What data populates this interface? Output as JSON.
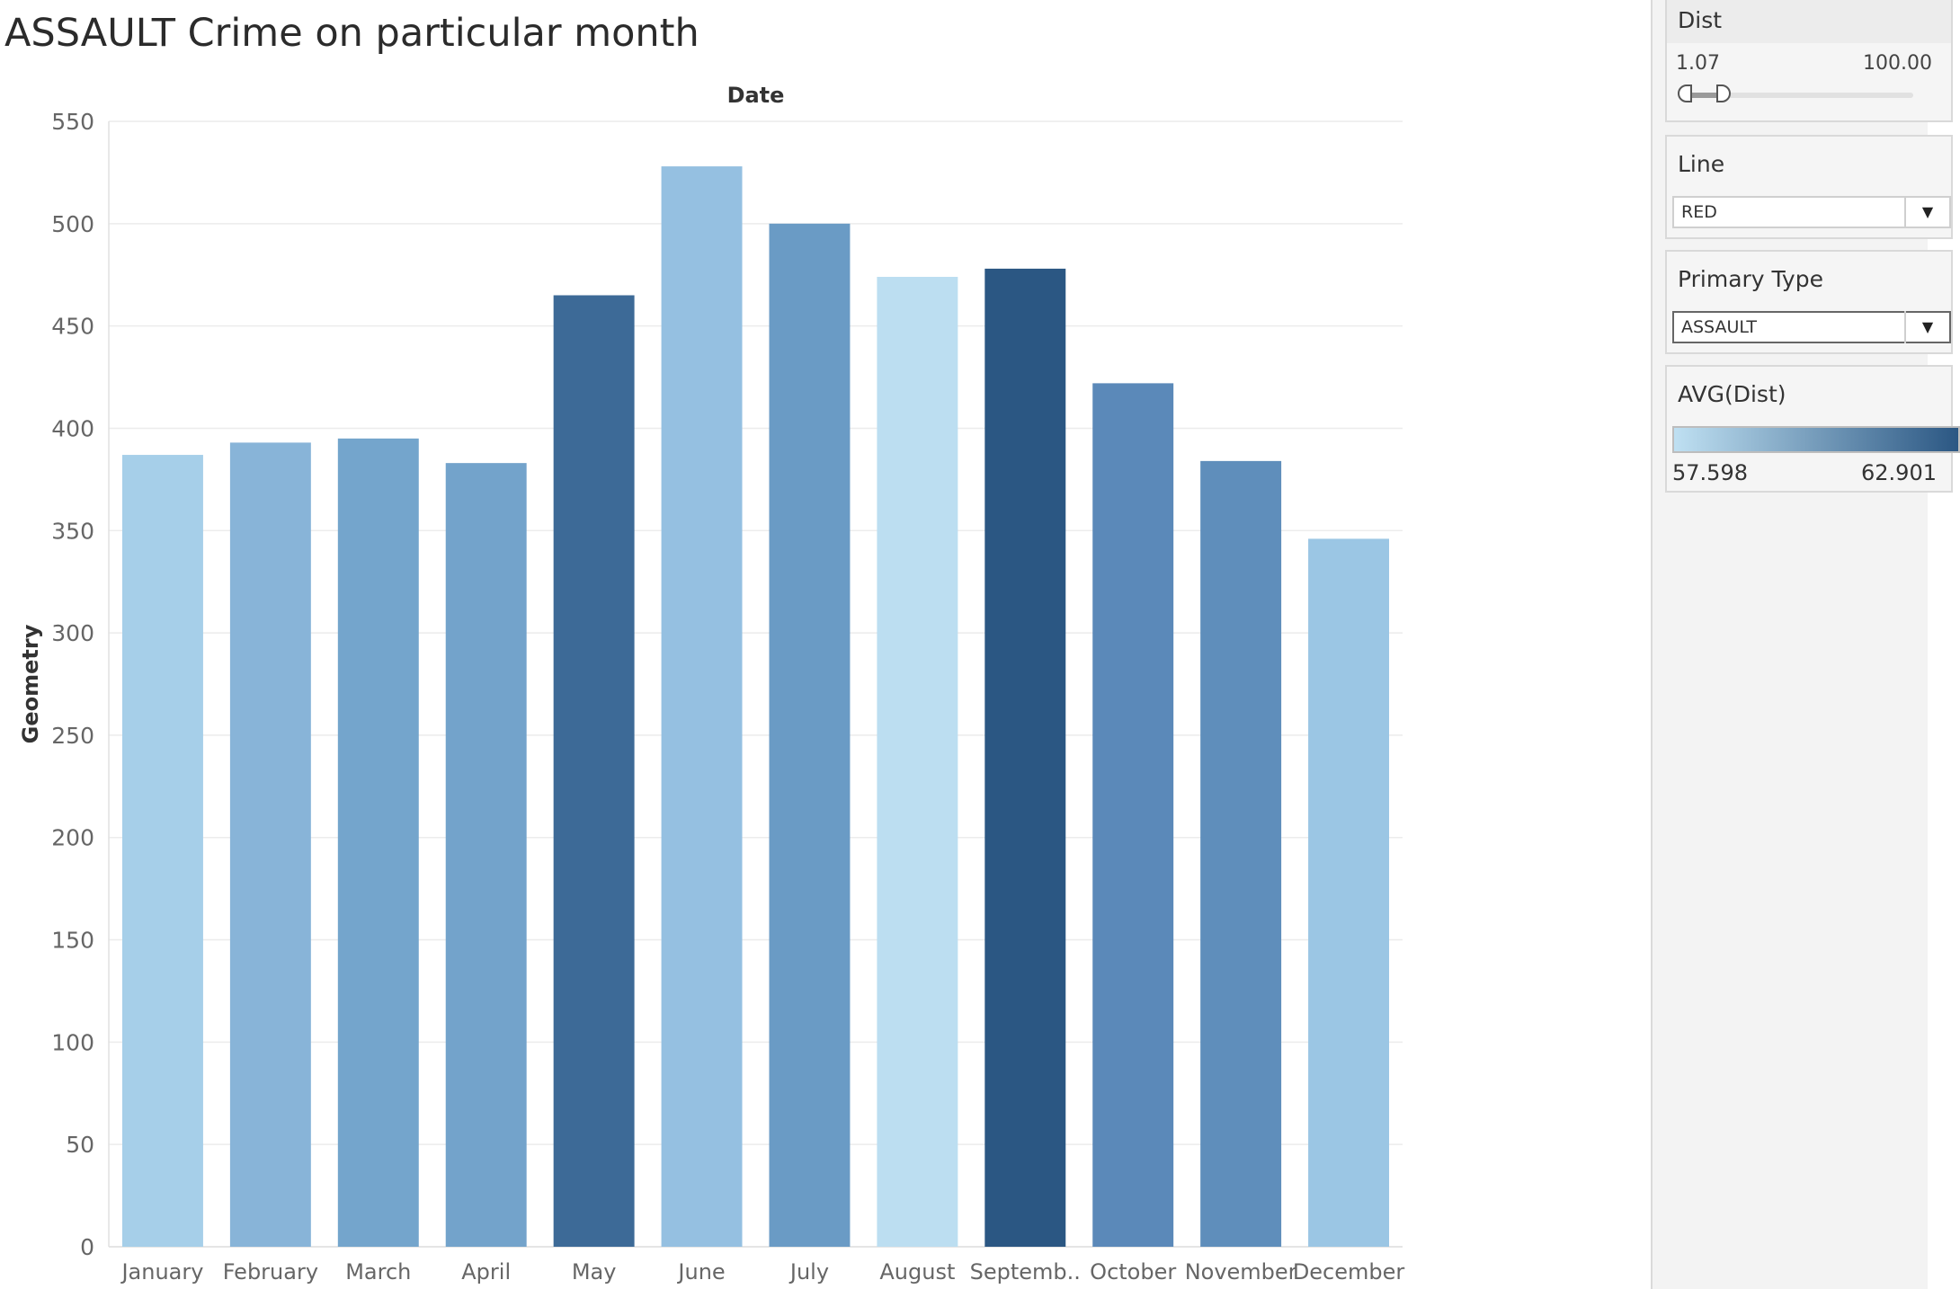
{
  "chart_data": {
    "type": "bar",
    "title": "ASSAULT Crime on particular month",
    "xlabel": "Date",
    "ylabel": "Geometry",
    "ylim": [
      0,
      550
    ],
    "yticks": [
      0,
      50,
      100,
      150,
      200,
      250,
      300,
      350,
      400,
      450,
      500,
      550
    ],
    "grid": true,
    "categories": [
      "January",
      "February",
      "March",
      "April",
      "May",
      "June",
      "July",
      "August",
      "Septemb..",
      "October",
      "November",
      "December"
    ],
    "values": [
      387,
      393,
      395,
      383,
      465,
      528,
      500,
      474,
      478,
      422,
      384,
      346
    ],
    "colors": [
      "#a6cfe9",
      "#88b4d8",
      "#74a5cc",
      "#73a3cb",
      "#3d6a97",
      "#95c0e1",
      "#6a9bc5",
      "#bcdef1",
      "#2b5783",
      "#5b89b9",
      "#5f8ebb",
      "#9bc6e4"
    ]
  },
  "filters": {
    "dist": {
      "label": "Dist",
      "min_label": "1.07",
      "max_label": "100.00",
      "selected_fraction": 0.19
    },
    "line": {
      "label": "Line",
      "value": "RED"
    },
    "primary_type": {
      "label": "Primary Type",
      "value": "ASSAULT"
    }
  },
  "legend": {
    "label": "AVG(Dist)",
    "min_label": "57.598",
    "max_label": "62.901",
    "color_start": "#bfe0f2",
    "color_end": "#2b5783"
  }
}
